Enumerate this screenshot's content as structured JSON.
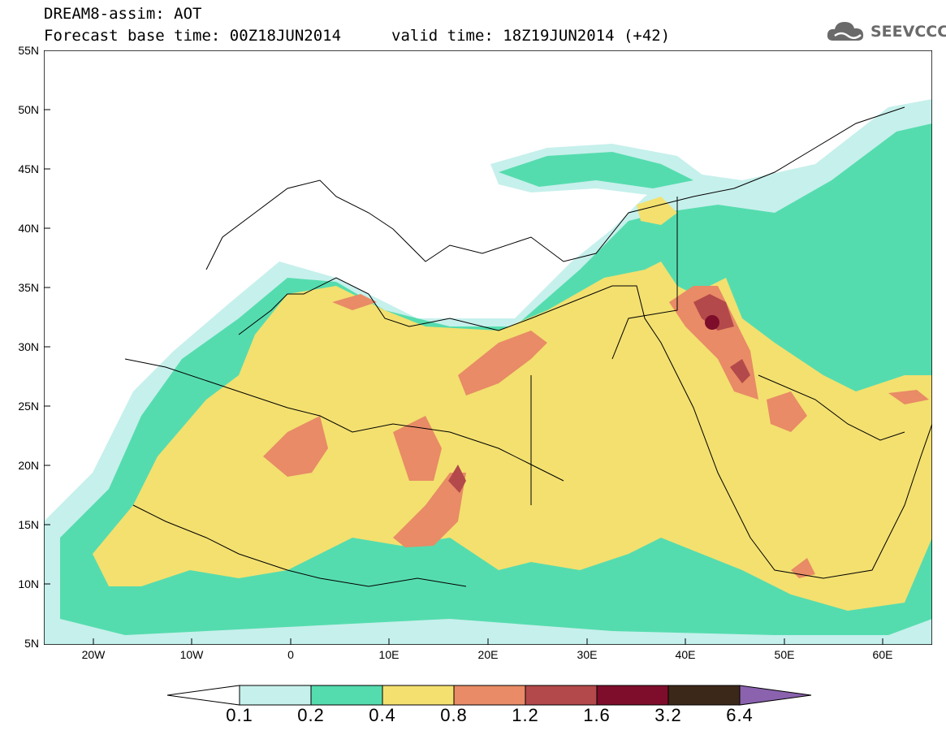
{
  "title": {
    "line1": "DREAM8-assim: AOT",
    "line2": "Forecast base time: 00Z18JUN2014",
    "valid": "valid time: 18Z19JUN2014 (+42)"
  },
  "logo": {
    "text": "SEEVCCC",
    "icon": "cloud-logo-icon"
  },
  "axes": {
    "y_ticks": [
      "55N",
      "50N",
      "45N",
      "40N",
      "35N",
      "30N",
      "25N",
      "20N",
      "15N",
      "10N",
      "5N"
    ],
    "x_ticks": [
      "20W",
      "10W",
      "0",
      "10E",
      "20E",
      "30E",
      "40E",
      "50E",
      "60E"
    ],
    "lat_range": [
      5,
      55
    ],
    "lon_range": [
      -25,
      65
    ]
  },
  "colorbar": {
    "labels": [
      "0.1",
      "0.2",
      "0.4",
      "0.8",
      "1.2",
      "1.6",
      "3.2",
      "6.4"
    ],
    "colors": [
      "#c6f0ec",
      "#55dcae",
      "#f3e06f",
      "#e88b66",
      "#b3494a",
      "#7d0d2a",
      "#3c2818",
      "#8a62ae"
    ]
  }
}
